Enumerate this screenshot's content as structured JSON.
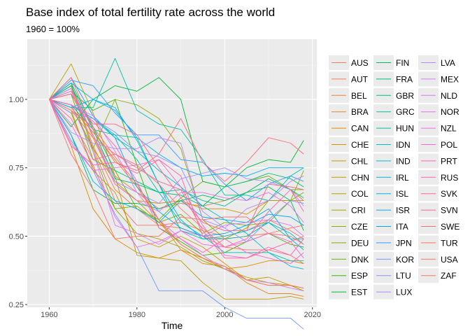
{
  "chart_data": {
    "type": "line",
    "title": "Base index of total fertility rate across the world",
    "subtitle": "1960 = 100%",
    "xlabel": "Time",
    "ylabel": "",
    "xlim": [
      1955,
      2021
    ],
    "ylim": [
      0.24,
      1.22
    ],
    "x_ticks": [
      1960,
      1980,
      2000,
      2020
    ],
    "y_ticks": [
      0.25,
      0.5,
      0.75,
      1.0
    ],
    "y_tick_labels": [
      "0.25",
      "0.50",
      "0.75",
      "1.00"
    ],
    "grid": true,
    "legend_position": "right",
    "x": [
      1960,
      1965,
      1970,
      1975,
      1980,
      1985,
      1990,
      1995,
      2000,
      2005,
      2010,
      2015,
      2018
    ],
    "series": [
      {
        "name": "AUS",
        "color": "#F8766D",
        "values": [
          1.0,
          1.04,
          0.82,
          0.63,
          0.54,
          0.54,
          0.55,
          0.52,
          0.5,
          0.52,
          0.56,
          0.52,
          0.49
        ]
      },
      {
        "name": "AUT",
        "color": "#F37B59",
        "values": [
          1.0,
          1.05,
          0.83,
          0.67,
          0.6,
          0.54,
          0.53,
          0.5,
          0.49,
          0.5,
          0.51,
          0.53,
          0.54
        ]
      },
      {
        "name": "BEL",
        "color": "#ED8141",
        "values": [
          1.0,
          1.02,
          0.87,
          0.72,
          0.66,
          0.6,
          0.62,
          0.61,
          0.63,
          0.66,
          0.71,
          0.67,
          0.63
        ]
      },
      {
        "name": "BRA",
        "color": "#E7861B",
        "values": [
          1.0,
          0.97,
          0.88,
          0.78,
          0.68,
          0.56,
          0.45,
          0.4,
          0.39,
          0.33,
          0.29,
          0.29,
          0.28
        ]
      },
      {
        "name": "CAN",
        "color": "#DE8C00",
        "values": [
          1.0,
          0.83,
          0.6,
          0.49,
          0.44,
          0.42,
          0.45,
          0.42,
          0.38,
          0.39,
          0.41,
          0.41,
          0.4
        ]
      },
      {
        "name": "CHE",
        "color": "#D59100",
        "values": [
          1.0,
          1.05,
          0.86,
          0.69,
          0.63,
          0.62,
          0.63,
          0.6,
          0.6,
          0.58,
          0.63,
          0.63,
          0.63
        ]
      },
      {
        "name": "CHL",
        "color": "#CA9700",
        "values": [
          1.0,
          0.96,
          0.74,
          0.66,
          0.49,
          0.46,
          0.5,
          0.46,
          0.4,
          0.34,
          0.35,
          0.32,
          0.3
        ]
      },
      {
        "name": "CHN",
        "color": "#BF9C00",
        "values": [
          1.0,
          1.13,
          0.95,
          0.72,
          0.43,
          0.42,
          0.41,
          0.33,
          0.27,
          0.27,
          0.27,
          0.28,
          0.27
        ]
      },
      {
        "name": "COL",
        "color": "#B2A100",
        "values": [
          1.0,
          0.98,
          0.82,
          0.7,
          0.63,
          0.55,
          0.47,
          0.42,
          0.38,
          0.35,
          0.33,
          0.32,
          0.3
        ]
      },
      {
        "name": "CRI",
        "color": "#A3A500",
        "values": [
          1.0,
          0.95,
          0.75,
          0.6,
          0.51,
          0.49,
          0.46,
          0.41,
          0.38,
          0.34,
          0.32,
          0.32,
          0.31
        ]
      },
      {
        "name": "CZE",
        "color": "#93AA00",
        "values": [
          1.0,
          0.98,
          0.82,
          1.0,
          0.98,
          0.93,
          0.82,
          0.56,
          0.49,
          0.53,
          0.63,
          0.63,
          0.74
        ]
      },
      {
        "name": "DEU",
        "color": "#7FAE00",
        "values": [
          1.0,
          1.06,
          0.81,
          0.6,
          0.61,
          0.55,
          0.58,
          0.51,
          0.55,
          0.54,
          0.55,
          0.63,
          0.66
        ]
      },
      {
        "name": "DNK",
        "color": "#66B200",
        "values": [
          1.0,
          1.02,
          0.78,
          0.74,
          0.6,
          0.56,
          0.64,
          0.7,
          0.68,
          0.7,
          0.72,
          0.67,
          0.67
        ]
      },
      {
        "name": "ESP",
        "color": "#3DB700",
        "values": [
          1.0,
          1.03,
          0.96,
          1.0,
          0.76,
          0.53,
          0.48,
          0.43,
          0.44,
          0.48,
          0.51,
          0.47,
          0.46
        ]
      },
      {
        "name": "EST",
        "color": "#00BA38",
        "values": [
          1.0,
          0.9,
          1.0,
          1.05,
          1.03,
          1.08,
          1.0,
          0.7,
          0.68,
          0.75,
          0.78,
          0.77,
          0.85
        ]
      },
      {
        "name": "FIN",
        "color": "#00BC58",
        "values": [
          1.0,
          0.87,
          0.67,
          0.62,
          0.62,
          0.6,
          0.63,
          0.65,
          0.63,
          0.66,
          0.68,
          0.63,
          0.52
        ]
      },
      {
        "name": "FRA",
        "color": "#00BE70",
        "values": [
          1.0,
          1.05,
          0.89,
          0.71,
          0.69,
          0.66,
          0.65,
          0.61,
          0.68,
          0.7,
          0.73,
          0.71,
          0.68
        ]
      },
      {
        "name": "GBR",
        "color": "#00C085",
        "values": [
          1.0,
          1.06,
          0.9,
          0.74,
          0.7,
          0.66,
          0.67,
          0.63,
          0.61,
          0.66,
          0.71,
          0.67,
          0.64
        ]
      },
      {
        "name": "GRC",
        "color": "#00C198",
        "values": [
          1.0,
          0.98,
          0.89,
          0.87,
          0.86,
          0.69,
          0.52,
          0.49,
          0.49,
          0.5,
          0.55,
          0.49,
          0.49
        ]
      },
      {
        "name": "HUN",
        "color": "#00C1AA",
        "values": [
          1.0,
          0.97,
          0.97,
          1.15,
          0.96,
          0.91,
          0.89,
          0.78,
          0.65,
          0.65,
          0.63,
          0.72,
          0.75
        ]
      },
      {
        "name": "IDN",
        "color": "#00BFBC",
        "values": [
          1.0,
          0.98,
          0.93,
          0.87,
          0.78,
          0.66,
          0.55,
          0.5,
          0.44,
          0.44,
          0.44,
          0.41,
          0.41
        ]
      },
      {
        "name": "IND",
        "color": "#00BCCC",
        "values": [
          1.0,
          0.98,
          0.93,
          0.86,
          0.81,
          0.74,
          0.68,
          0.61,
          0.56,
          0.51,
          0.44,
          0.39,
          0.38
        ]
      },
      {
        "name": "IRL",
        "color": "#00B8DB",
        "values": [
          1.0,
          1.06,
          1.0,
          0.97,
          0.85,
          0.69,
          0.56,
          0.49,
          0.5,
          0.52,
          0.55,
          0.51,
          0.47
        ]
      },
      {
        "name": "ISL",
        "color": "#00B3E9",
        "values": [
          1.0,
          0.87,
          0.7,
          0.63,
          0.6,
          0.55,
          0.63,
          0.57,
          0.56,
          0.55,
          0.6,
          0.49,
          0.45
        ]
      },
      {
        "name": "ISR",
        "color": "#00ADF6",
        "values": [
          1.0,
          0.97,
          1.0,
          0.96,
          0.86,
          0.8,
          0.75,
          0.72,
          0.73,
          0.72,
          0.75,
          0.75,
          0.75
        ]
      },
      {
        "name": "ITA",
        "color": "#00A5FF",
        "values": [
          1.0,
          1.08,
          0.94,
          0.86,
          0.68,
          0.59,
          0.53,
          0.5,
          0.51,
          0.54,
          0.58,
          0.57,
          0.54
        ]
      },
      {
        "name": "JPN",
        "color": "#349DFF",
        "values": [
          1.0,
          1.07,
          1.05,
          0.95,
          0.87,
          0.87,
          0.78,
          0.77,
          0.69,
          0.63,
          0.69,
          0.72,
          0.7
        ]
      },
      {
        "name": "KOR",
        "color": "#7096FF",
        "values": [
          1.0,
          0.85,
          0.74,
          0.58,
          0.46,
          0.3,
          0.3,
          0.3,
          0.24,
          0.2,
          0.2,
          0.2,
          0.16
        ]
      },
      {
        "name": "LTU",
        "color": "#8F91FF",
        "values": [
          1.0,
          0.95,
          0.93,
          0.88,
          0.81,
          0.79,
          0.75,
          0.59,
          0.53,
          0.48,
          0.56,
          0.63,
          0.62
        ]
      },
      {
        "name": "LUX",
        "color": "#A88BFF",
        "values": [
          1.0,
          1.04,
          0.87,
          0.7,
          0.66,
          0.62,
          0.71,
          0.73,
          0.75,
          0.71,
          0.7,
          0.67,
          0.61
        ]
      },
      {
        "name": "LVA",
        "color": "#BD85FC",
        "values": [
          1.0,
          0.88,
          0.84,
          0.82,
          0.82,
          0.86,
          0.84,
          0.56,
          0.53,
          0.6,
          0.63,
          0.7,
          0.72
        ]
      },
      {
        "name": "MEX",
        "color": "#CE7FF6",
        "values": [
          1.0,
          0.98,
          0.94,
          0.81,
          0.66,
          0.56,
          0.49,
          0.43,
          0.38,
          0.34,
          0.33,
          0.31,
          0.3
        ]
      },
      {
        "name": "NLD",
        "color": "#DD78EE",
        "values": [
          1.0,
          0.98,
          0.81,
          0.54,
          0.51,
          0.47,
          0.52,
          0.5,
          0.54,
          0.55,
          0.56,
          0.54,
          0.5
        ]
      },
      {
        "name": "NOR",
        "color": "#E972E5",
        "values": [
          1.0,
          1.03,
          0.87,
          0.69,
          0.63,
          0.59,
          0.66,
          0.66,
          0.64,
          0.63,
          0.66,
          0.61,
          0.55
        ]
      },
      {
        "name": "NZL",
        "color": "#F36CDA",
        "values": [
          1.0,
          0.91,
          0.76,
          0.57,
          0.46,
          0.48,
          0.52,
          0.47,
          0.46,
          0.48,
          0.51,
          0.48,
          0.42
        ]
      },
      {
        "name": "POL",
        "color": "#FA67CE",
        "values": [
          1.0,
          0.84,
          0.74,
          0.75,
          0.76,
          0.78,
          0.68,
          0.54,
          0.43,
          0.42,
          0.46,
          0.43,
          0.49
        ]
      },
      {
        "name": "PRT",
        "color": "#FF62BF",
        "values": [
          1.0,
          0.98,
          0.92,
          0.83,
          0.7,
          0.53,
          0.49,
          0.44,
          0.49,
          0.44,
          0.42,
          0.4,
          0.44
        ]
      },
      {
        "name": "RUS",
        "color": "#FF62B0",
        "values": [
          1.0,
          0.83,
          0.76,
          0.77,
          0.73,
          0.78,
          0.72,
          0.5,
          0.46,
          0.49,
          0.59,
          0.67,
          0.59
        ]
      },
      {
        "name": "SVK",
        "color": "#FF639F",
        "values": [
          1.0,
          0.93,
          0.78,
          0.8,
          0.75,
          0.7,
          0.67,
          0.52,
          0.42,
          0.42,
          0.45,
          0.48,
          0.5
        ]
      },
      {
        "name": "SVN",
        "color": "#FF668C",
        "values": [
          1.0,
          1.02,
          0.91,
          0.91,
          0.87,
          0.75,
          0.64,
          0.55,
          0.52,
          0.52,
          0.69,
          0.68,
          0.67
        ]
      },
      {
        "name": "SWE",
        "color": "#FF6B77",
        "values": [
          1.0,
          1.08,
          0.89,
          0.77,
          0.74,
          0.8,
          0.93,
          0.77,
          0.7,
          0.77,
          0.86,
          0.84,
          0.8
        ]
      },
      {
        "name": "TUR",
        "color": "#FB7262",
        "values": [
          1.0,
          0.96,
          0.9,
          0.79,
          0.69,
          0.56,
          0.47,
          0.42,
          0.39,
          0.34,
          0.32,
          0.32,
          0.31
        ]
      },
      {
        "name": "USA",
        "color": "#F8766D",
        "values": [
          1.0,
          0.8,
          0.67,
          0.49,
          0.5,
          0.5,
          0.57,
          0.56,
          0.57,
          0.57,
          0.51,
          0.5,
          0.47
        ]
      },
      {
        "name": "ZAF",
        "color": "#F8766D",
        "values": [
          1.0,
          0.96,
          0.86,
          0.8,
          0.76,
          0.69,
          0.6,
          0.53,
          0.46,
          0.45,
          0.45,
          0.43,
          0.4
        ]
      }
    ]
  }
}
